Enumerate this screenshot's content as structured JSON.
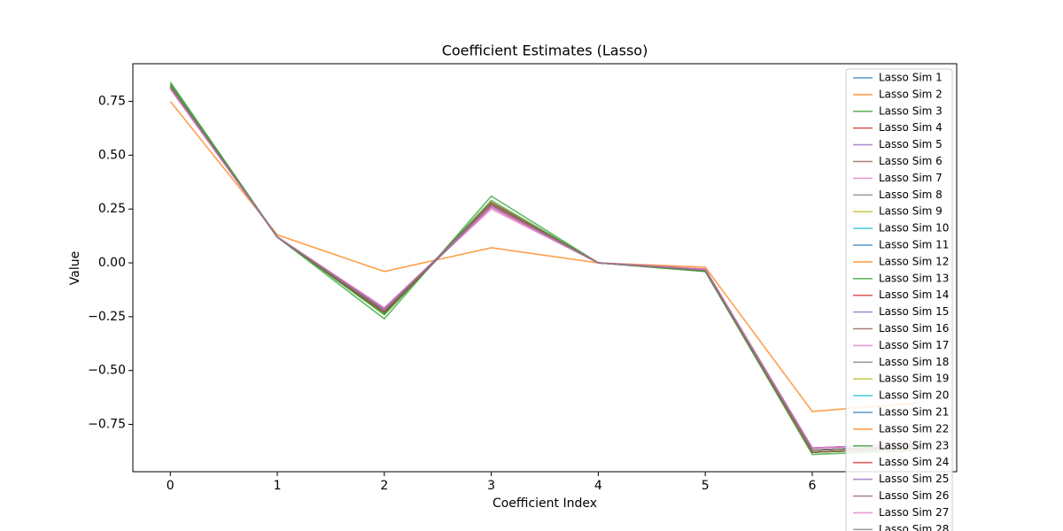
{
  "chart_data": {
    "type": "line",
    "title": "Coefficient Estimates (Lasso)",
    "x_label": "Coefficient Index",
    "y_label": "Value",
    "x": [
      0,
      1,
      2,
      3,
      4,
      5,
      6,
      7
    ],
    "xlim": [
      -0.35,
      7.35
    ],
    "xticks": [
      0,
      1,
      2,
      3,
      4,
      5,
      6
    ],
    "ylim": [
      -0.97,
      0.925
    ],
    "yticks": [
      {
        "value": -0.75,
        "label": "−0.75"
      },
      {
        "value": -0.5,
        "label": "−0.50"
      },
      {
        "value": -0.25,
        "label": "−0.25"
      },
      {
        "value": 0,
        "label": "0.00"
      },
      {
        "value": 0.25,
        "label": "0.25"
      },
      {
        "value": 0.5,
        "label": "0.50"
      },
      {
        "value": 0.75,
        "label": "0.75"
      }
    ],
    "legend": "upper right",
    "series": [
      {
        "name": "Lasso Sim 1",
        "color": "#1f77b4",
        "values": [
          0.82,
          0.12,
          -0.23,
          0.27,
          0.0,
          -0.035,
          -0.87,
          -0.85
        ]
      },
      {
        "name": "Lasso Sim 2",
        "color": "#ff7f0e",
        "values": [
          0.75,
          0.13,
          -0.04,
          0.07,
          0.0,
          -0.02,
          -0.69,
          -0.65
        ]
      },
      {
        "name": "Lasso Sim 3",
        "color": "#2ca02c",
        "values": [
          0.84,
          0.12,
          -0.26,
          0.31,
          0.0,
          -0.04,
          -0.89,
          -0.87
        ]
      },
      {
        "name": "Lasso Sim 4",
        "color": "#d62728",
        "values": [
          0.82,
          0.12,
          -0.22,
          0.27,
          0.0,
          -0.035,
          -0.87,
          -0.85
        ]
      },
      {
        "name": "Lasso Sim 5",
        "color": "#9467bd",
        "values": [
          0.81,
          0.12,
          -0.21,
          0.26,
          0.0,
          -0.03,
          -0.86,
          -0.84
        ]
      },
      {
        "name": "Lasso Sim 6",
        "color": "#8c564b",
        "values": [
          0.82,
          0.12,
          -0.23,
          0.28,
          0.0,
          -0.035,
          -0.88,
          -0.86
        ]
      },
      {
        "name": "Lasso Sim 7",
        "color": "#e377c2",
        "values": [
          0.81,
          0.12,
          -0.21,
          0.25,
          0.0,
          -0.03,
          -0.86,
          -0.84
        ]
      },
      {
        "name": "Lasso Sim 8",
        "color": "#7f7f7f",
        "values": [
          0.82,
          0.12,
          -0.22,
          0.27,
          0.0,
          -0.035,
          -0.87,
          -0.85
        ]
      },
      {
        "name": "Lasso Sim 9",
        "color": "#bcbd22",
        "values": [
          0.82,
          0.12,
          -0.23,
          0.28,
          0.0,
          -0.035,
          -0.88,
          -0.86
        ]
      },
      {
        "name": "Lasso Sim 10",
        "color": "#17becf",
        "values": [
          0.82,
          0.12,
          -0.23,
          0.27,
          0.0,
          -0.035,
          -0.87,
          -0.85
        ]
      },
      {
        "name": "Lasso Sim 11",
        "color": "#1f77b4",
        "values": [
          0.82,
          0.12,
          -0.22,
          0.27,
          0.0,
          -0.035,
          -0.87,
          -0.85
        ]
      },
      {
        "name": "Lasso Sim 12",
        "color": "#ff7f0e",
        "values": [
          0.82,
          0.12,
          -0.23,
          0.28,
          0.0,
          -0.035,
          -0.88,
          -0.86
        ]
      },
      {
        "name": "Lasso Sim 13",
        "color": "#2ca02c",
        "values": [
          0.83,
          0.12,
          -0.24,
          0.28,
          0.0,
          -0.035,
          -0.88,
          -0.86
        ]
      },
      {
        "name": "Lasso Sim 14",
        "color": "#d62728",
        "values": [
          0.82,
          0.12,
          -0.23,
          0.27,
          0.0,
          -0.035,
          -0.87,
          -0.85
        ]
      },
      {
        "name": "Lasso Sim 15",
        "color": "#9467bd",
        "values": [
          0.81,
          0.12,
          -0.21,
          0.26,
          0.0,
          -0.03,
          -0.86,
          -0.84
        ]
      },
      {
        "name": "Lasso Sim 16",
        "color": "#8c564b",
        "values": [
          0.82,
          0.12,
          -0.23,
          0.28,
          0.0,
          -0.035,
          -0.88,
          -0.86
        ]
      },
      {
        "name": "Lasso Sim 17",
        "color": "#e377c2",
        "values": [
          0.81,
          0.12,
          -0.21,
          0.26,
          0.0,
          -0.03,
          -0.86,
          -0.84
        ]
      },
      {
        "name": "Lasso Sim 18",
        "color": "#7f7f7f",
        "values": [
          0.82,
          0.12,
          -0.22,
          0.27,
          0.0,
          -0.035,
          -0.87,
          -0.85
        ]
      },
      {
        "name": "Lasso Sim 19",
        "color": "#bcbd22",
        "values": [
          0.82,
          0.12,
          -0.23,
          0.28,
          0.0,
          -0.035,
          -0.88,
          -0.86
        ]
      },
      {
        "name": "Lasso Sim 20",
        "color": "#17becf",
        "values": [
          0.82,
          0.12,
          -0.23,
          0.27,
          0.0,
          -0.035,
          -0.87,
          -0.85
        ]
      },
      {
        "name": "Lasso Sim 21",
        "color": "#1f77b4",
        "values": [
          0.82,
          0.12,
          -0.22,
          0.27,
          0.0,
          -0.035,
          -0.87,
          -0.85
        ]
      },
      {
        "name": "Lasso Sim 22",
        "color": "#ff7f0e",
        "values": [
          0.82,
          0.12,
          -0.23,
          0.28,
          0.0,
          -0.035,
          -0.88,
          -0.86
        ]
      },
      {
        "name": "Lasso Sim 23",
        "color": "#2ca02c",
        "values": [
          0.83,
          0.12,
          -0.24,
          0.29,
          0.0,
          -0.04,
          -0.88,
          -0.86
        ]
      },
      {
        "name": "Lasso Sim 24",
        "color": "#d62728",
        "values": [
          0.82,
          0.12,
          -0.23,
          0.27,
          0.0,
          -0.035,
          -0.87,
          -0.85
        ]
      },
      {
        "name": "Lasso Sim 25",
        "color": "#9467bd",
        "values": [
          0.81,
          0.12,
          -0.22,
          0.26,
          0.0,
          -0.03,
          -0.86,
          -0.84
        ]
      },
      {
        "name": "Lasso Sim 26",
        "color": "#8c564b",
        "values": [
          0.82,
          0.12,
          -0.23,
          0.28,
          0.0,
          -0.035,
          -0.88,
          -0.86
        ]
      },
      {
        "name": "Lasso Sim 27",
        "color": "#e377c2",
        "values": [
          0.81,
          0.12,
          -0.21,
          0.26,
          0.0,
          -0.03,
          -0.86,
          -0.84
        ]
      },
      {
        "name": "Lasso Sim 28",
        "color": "#7f7f7f",
        "values": [
          0.82,
          0.12,
          -0.22,
          0.27,
          0.0,
          -0.035,
          -0.87,
          -0.85
        ]
      }
    ]
  }
}
